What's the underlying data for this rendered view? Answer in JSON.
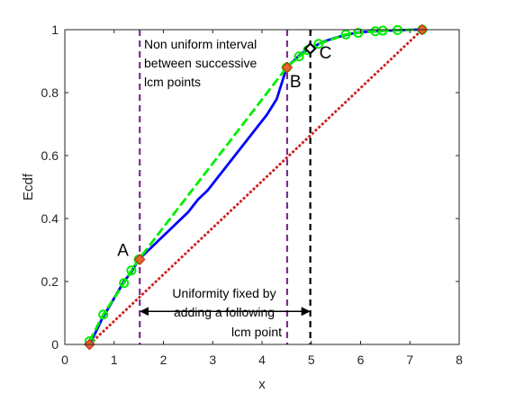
{
  "chart_data": {
    "type": "line",
    "title": "",
    "xlabel": "x",
    "ylabel": "Ecdf",
    "xlim": [
      0,
      8
    ],
    "ylim": [
      0,
      1
    ],
    "xticks": [
      "0",
      "1",
      "2",
      "3",
      "4",
      "5",
      "6",
      "7",
      "8"
    ],
    "yticks": [
      "0",
      "0.2",
      "0.4",
      "0.6",
      "0.8",
      "1"
    ],
    "grid": false,
    "series": [
      {
        "kind": "ecdf",
        "color": "#0000ff",
        "x": [
          0.5,
          0.6,
          0.75,
          0.9,
          1.05,
          1.2,
          1.35,
          1.5,
          1.7,
          1.9,
          2.1,
          2.3,
          2.5,
          2.7,
          2.9,
          3.1,
          3.3,
          3.5,
          3.7,
          3.9,
          4.1,
          4.3,
          4.5,
          4.7,
          4.85,
          5.0,
          5.15,
          5.3,
          5.5,
          5.7,
          5.9,
          6.1,
          6.3,
          6.5,
          6.7,
          6.9,
          7.1,
          7.25
        ],
        "y": [
          0.0,
          0.03,
          0.08,
          0.12,
          0.16,
          0.2,
          0.23,
          0.27,
          0.3,
          0.33,
          0.36,
          0.39,
          0.42,
          0.46,
          0.49,
          0.53,
          0.57,
          0.61,
          0.65,
          0.69,
          0.73,
          0.78,
          0.88,
          0.91,
          0.93,
          0.94,
          0.955,
          0.965,
          0.975,
          0.983,
          0.99,
          0.993,
          0.995,
          0.997,
          0.998,
          0.999,
          1.0,
          1.0
        ]
      },
      {
        "kind": "lcm",
        "color": "#00ee00",
        "x": [
          0.5,
          0.78,
          1.2,
          1.35,
          1.5,
          4.5,
          4.75,
          4.93,
          5.15,
          5.7,
          5.95,
          6.3,
          6.45,
          6.75,
          7.25
        ],
        "y": [
          0.01,
          0.095,
          0.195,
          0.235,
          0.27,
          0.88,
          0.915,
          0.935,
          0.955,
          0.985,
          0.99,
          0.995,
          0.997,
          0.999,
          1.0
        ]
      },
      {
        "kind": "reference",
        "color": "#cc2020",
        "x": [
          0.5,
          7.25
        ],
        "y": [
          0.0,
          1.0
        ]
      }
    ],
    "vlines": [
      {
        "x": 1.52,
        "color": "#7b2d8e"
      },
      {
        "x": 4.51,
        "color": "#7b2d8e"
      },
      {
        "x": 4.98,
        "color": "#000000"
      }
    ],
    "highlight_points": [
      {
        "x": 0.5,
        "y": 0.0,
        "color": "#e8642c"
      },
      {
        "x": 1.52,
        "y": 0.27,
        "color": "#e8642c"
      },
      {
        "x": 4.51,
        "y": 0.88,
        "color": "#e8642c"
      },
      {
        "x": 4.98,
        "y": 0.94,
        "color": "#000000"
      },
      {
        "x": 7.25,
        "y": 1.0,
        "color": "#e8642c"
      }
    ],
    "point_labels": [
      {
        "text": "A",
        "x": 1.52,
        "y": 0.27
      },
      {
        "text": "B",
        "x": 4.51,
        "y": 0.88
      },
      {
        "text": "C",
        "x": 4.98,
        "y": 0.94
      }
    ],
    "annotations": {
      "top": [
        "Non uniform interval",
        "between successive",
        "lcm points"
      ],
      "bottom": [
        "Uniformity fixed by",
        "adding a following",
        "lcm point"
      ]
    },
    "arrow": {
      "from_x": 1.52,
      "to_x": 4.98,
      "y": 0.105
    }
  }
}
